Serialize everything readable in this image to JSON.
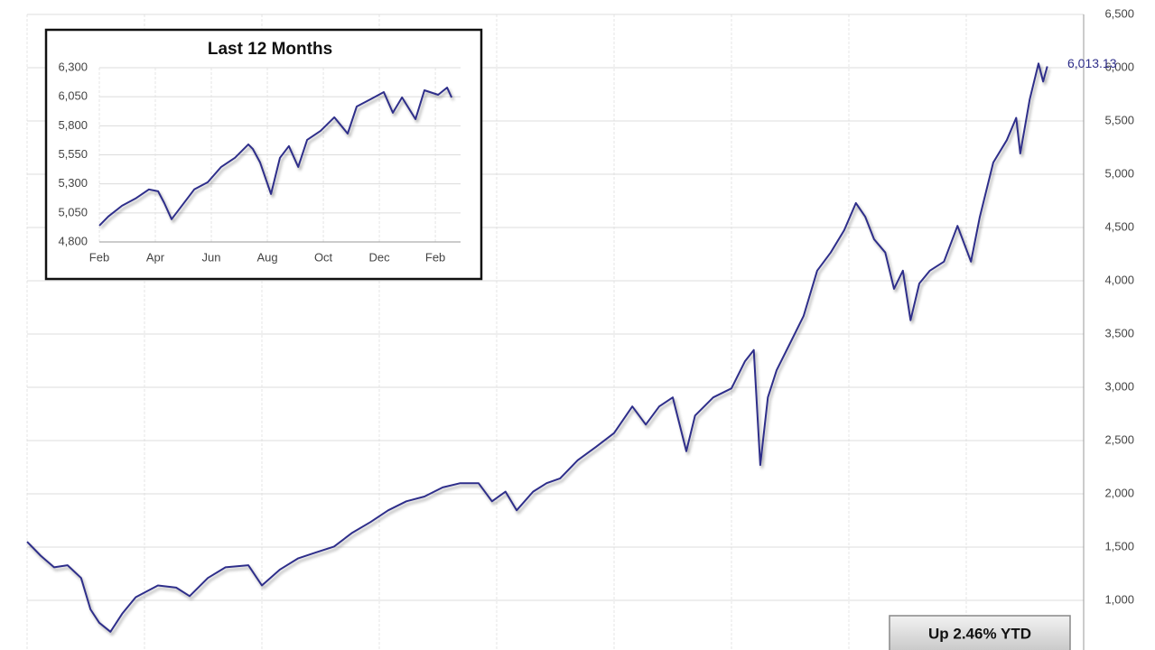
{
  "chart_data": [
    {
      "type": "line",
      "color": "#2e2e8a",
      "grid": true,
      "x": [
        0,
        0.23,
        0.46,
        0.69,
        0.92,
        1.08,
        1.23,
        1.42,
        1.62,
        1.85,
        2.23,
        2.54,
        2.77,
        3.08,
        3.38,
        3.77,
        4,
        4.31,
        4.62,
        4.92,
        5.23,
        5.54,
        5.85,
        6.15,
        6.46,
        6.77,
        7.08,
        7.38,
        7.69,
        7.92,
        8.15,
        8.34,
        8.62,
        8.85,
        9.08,
        9.38,
        9.69,
        10,
        10.31,
        10.54,
        10.77,
        11,
        11.23,
        11.38,
        11.69,
        12,
        12.23,
        12.38,
        12.49,
        12.62,
        12.77,
        13,
        13.23,
        13.46,
        13.69,
        13.92,
        14.12,
        14.28,
        14.43,
        14.62,
        14.77,
        14.92,
        15.05,
        15.2,
        15.38,
        15.62,
        15.85,
        16.08,
        16.23,
        16.46,
        16.69,
        16.85,
        16.92,
        17.08,
        17.23,
        17.31,
        17.38
      ],
      "values": [
        1550,
        1420,
        1310,
        1330,
        1210,
        915,
        790,
        705,
        875,
        1030,
        1140,
        1120,
        1040,
        1210,
        1310,
        1330,
        1140,
        1290,
        1395,
        1450,
        1505,
        1635,
        1735,
        1845,
        1930,
        1975,
        2060,
        2100,
        2100,
        1930,
        2020,
        1845,
        2020,
        2100,
        2145,
        2315,
        2440,
        2570,
        2820,
        2650,
        2820,
        2905,
        2400,
        2735,
        2905,
        2990,
        3245,
        3350,
        2270,
        2905,
        3160,
        3415,
        3670,
        4095,
        4265,
        4475,
        4730,
        4600,
        4390,
        4265,
        3925,
        4095,
        3630,
        3975,
        4095,
        4180,
        4515,
        4180,
        4600,
        5110,
        5320,
        5530,
        5195,
        5700,
        6040,
        5870,
        6013.13
      ],
      "xlim": [
        0,
        18
      ],
      "xgrid": [
        0,
        2,
        4,
        6,
        8,
        10,
        12,
        14,
        16
      ],
      "ylim": [
        534,
        6500
      ],
      "yticks": [
        {
          "value": 1000,
          "label": "1,000"
        },
        {
          "value": 1500,
          "label": "1,500"
        },
        {
          "value": 2000,
          "label": "2,000"
        },
        {
          "value": 2500,
          "label": "2,500"
        },
        {
          "value": 3000,
          "label": "3,000"
        },
        {
          "value": 3500,
          "label": "3,500"
        },
        {
          "value": 4000,
          "label": "4,000"
        },
        {
          "value": 4500,
          "label": "4,500"
        },
        {
          "value": 5000,
          "label": "5,000"
        },
        {
          "value": 5500,
          "label": "5,500"
        },
        {
          "value": 6000,
          "label": "6,000"
        },
        {
          "value": 6500,
          "label": "6,500"
        }
      ],
      "end_label": "6,013.13",
      "note": "Up 2.46% YTD"
    },
    {
      "type": "line",
      "title": "Last 12 Months",
      "color": "#2e2e8a",
      "grid": true,
      "x": [
        0,
        0.32,
        0.81,
        1.29,
        1.77,
        2.1,
        2.32,
        2.58,
        2.9,
        3.39,
        3.87,
        4.35,
        4.84,
        5.32,
        5.48,
        5.74,
        6.13,
        6.45,
        6.77,
        7.1,
        7.42,
        7.9,
        8.39,
        8.87,
        9.19,
        9.68,
        10.16,
        10.48,
        10.81,
        11.29,
        11.61,
        12.1,
        12.42,
        12.58
      ],
      "values": [
        4941,
        5019,
        5112,
        5174,
        5252,
        5236,
        5135,
        4996,
        5097,
        5252,
        5314,
        5446,
        5524,
        5640,
        5601,
        5485,
        5213,
        5524,
        5625,
        5446,
        5679,
        5757,
        5873,
        5733,
        5966,
        6028,
        6090,
        5912,
        6044,
        5857,
        6106,
        6067,
        6129,
        6044
      ],
      "xlim": [
        0,
        12.9
      ],
      "xticks": [
        {
          "value": 0,
          "label": "Feb"
        },
        {
          "value": 2,
          "label": "Apr"
        },
        {
          "value": 4,
          "label": "Jun"
        },
        {
          "value": 6,
          "label": "Aug"
        },
        {
          "value": 8,
          "label": "Oct"
        },
        {
          "value": 10,
          "label": "Dec"
        },
        {
          "value": 12,
          "label": "Feb"
        }
      ],
      "ylim": [
        4800,
        6300
      ],
      "yticks": [
        {
          "value": 4800,
          "label": "4,800"
        },
        {
          "value": 5050,
          "label": "5,050"
        },
        {
          "value": 5300,
          "label": "5,300"
        },
        {
          "value": 5550,
          "label": "5,550"
        },
        {
          "value": 5800,
          "label": "5,800"
        },
        {
          "value": 6050,
          "label": "6,050"
        },
        {
          "value": 6300,
          "label": "6,300"
        }
      ]
    }
  ]
}
